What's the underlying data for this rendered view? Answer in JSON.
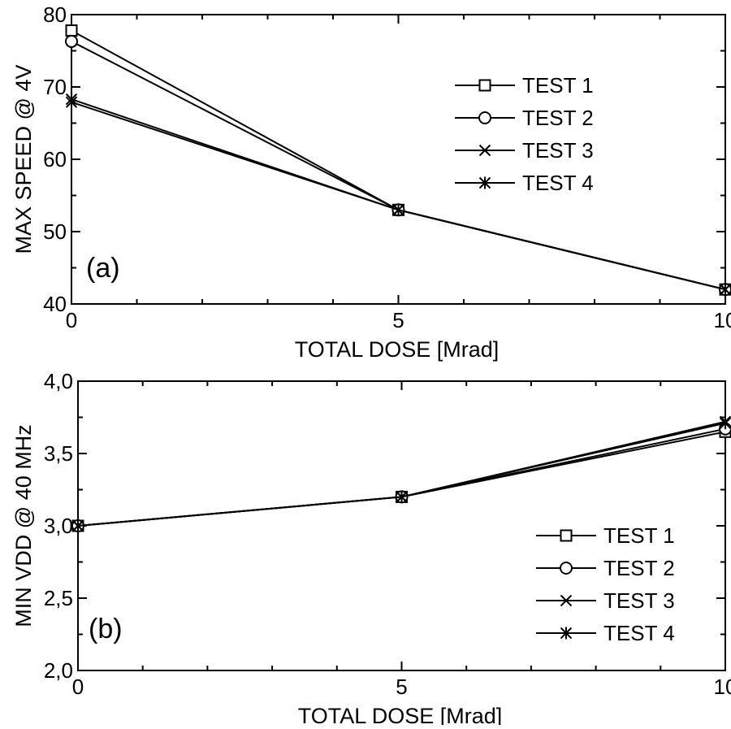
{
  "chart_data": [
    {
      "type": "line",
      "panel_label": "(a)",
      "xlabel": "TOTAL DOSE [Mrad]",
      "ylabel": "MAX SPEED @ 4V",
      "xlim": [
        0,
        10
      ],
      "ylim": [
        40,
        80
      ],
      "x_ticks": [
        "0",
        "5",
        "10"
      ],
      "y_ticks": [
        "40",
        "50",
        "60",
        "70",
        "80"
      ],
      "x": [
        0,
        5,
        10
      ],
      "series": [
        {
          "name": "TEST 1",
          "marker": "square",
          "values": [
            77.8,
            53,
            42
          ]
        },
        {
          "name": "TEST 2",
          "marker": "circle",
          "values": [
            76.3,
            53,
            42
          ]
        },
        {
          "name": "TEST 3",
          "marker": "x",
          "values": [
            68.3,
            53,
            42
          ]
        },
        {
          "name": "TEST 4",
          "marker": "asterisk",
          "values": [
            67.9,
            53,
            42
          ]
        }
      ],
      "legend_position": "right",
      "grid": false
    },
    {
      "type": "line",
      "panel_label": "(b)",
      "xlabel": "TOTAL DOSE [Mrad]",
      "ylabel": "MIN VDD @ 40 MHz",
      "xlim": [
        0,
        10
      ],
      "ylim": [
        2.0,
        4.0
      ],
      "x_ticks": [
        "0",
        "5",
        "10"
      ],
      "y_ticks": [
        "2,0",
        "2,5",
        "3,0",
        "3,5",
        "4,0"
      ],
      "x": [
        0,
        5,
        10
      ],
      "series": [
        {
          "name": "TEST 1",
          "marker": "square",
          "values": [
            3.0,
            3.2,
            3.65
          ]
        },
        {
          "name": "TEST 2",
          "marker": "circle",
          "values": [
            3.0,
            3.2,
            3.67
          ]
        },
        {
          "name": "TEST 3",
          "marker": "x",
          "values": [
            3.0,
            3.2,
            3.72
          ]
        },
        {
          "name": "TEST 4",
          "marker": "asterisk",
          "values": [
            3.0,
            3.2,
            3.71
          ]
        }
      ],
      "legend_position": "bottom-right",
      "grid": false
    }
  ]
}
